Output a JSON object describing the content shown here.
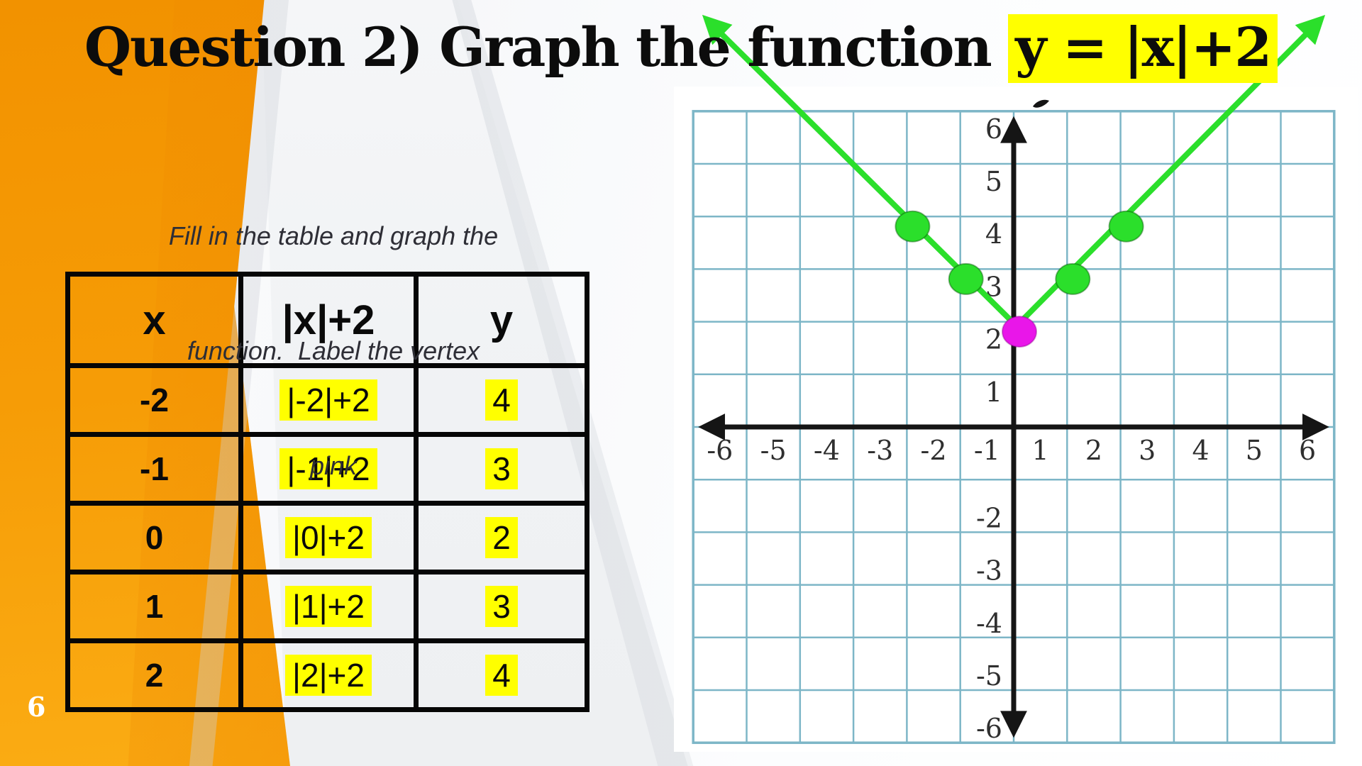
{
  "slide": {
    "title_prefix": "Question 2) Graph the function ",
    "title_highlighted": "y = |x|+2",
    "instruction_lines": [
      "Fill in the table and graph the",
      "function.  Label the vertex",
      "pink"
    ],
    "page_number": "6"
  },
  "table": {
    "headers": [
      "x",
      "|x|+2",
      "y"
    ],
    "rows": [
      {
        "x": "-2",
        "expr": "|-2|+2",
        "y": "4"
      },
      {
        "x": "-1",
        "expr": "|-1|+2",
        "y": "3"
      },
      {
        "x": "0",
        "expr": "|0|+2",
        "y": "2"
      },
      {
        "x": "1",
        "expr": "|1|+2",
        "y": "3"
      },
      {
        "x": "2",
        "expr": "|2|+2",
        "y": "4"
      }
    ]
  },
  "chart_data": {
    "type": "line",
    "title": "y = |x|+2",
    "x": [
      -2,
      -1,
      0,
      1,
      2
    ],
    "y": [
      4,
      3,
      2,
      3,
      4
    ],
    "points": [
      {
        "x": -2,
        "y": 4,
        "color": "green"
      },
      {
        "x": -1,
        "y": 3,
        "color": "green"
      },
      {
        "x": 0,
        "y": 2,
        "color": "magenta",
        "label": "vertex"
      },
      {
        "x": 1,
        "y": 3,
        "color": "green"
      },
      {
        "x": 2,
        "y": 4,
        "color": "green"
      }
    ],
    "xlim": [
      -6,
      6
    ],
    "ylim": [
      -6,
      6
    ],
    "x_tick_labels": [
      "-6",
      "-5",
      "-4",
      "-3",
      "-2",
      "-1",
      "1",
      "2",
      "3",
      "4",
      "5",
      "6"
    ],
    "y_tick_labels_positive": [
      "1",
      "2",
      "3",
      "4",
      "5",
      "6"
    ],
    "y_tick_labels_negative": [
      "-2",
      "-3",
      "-4",
      "-5",
      "-6"
    ],
    "grid": true,
    "legend": false,
    "line_color": "#2bdf2b",
    "vertex_color": "#e916e9",
    "grid_color": "#7db6c7",
    "axis_color": "#151515",
    "tick_color": "#2f2f2f",
    "highlight_color": "#ffff00"
  }
}
